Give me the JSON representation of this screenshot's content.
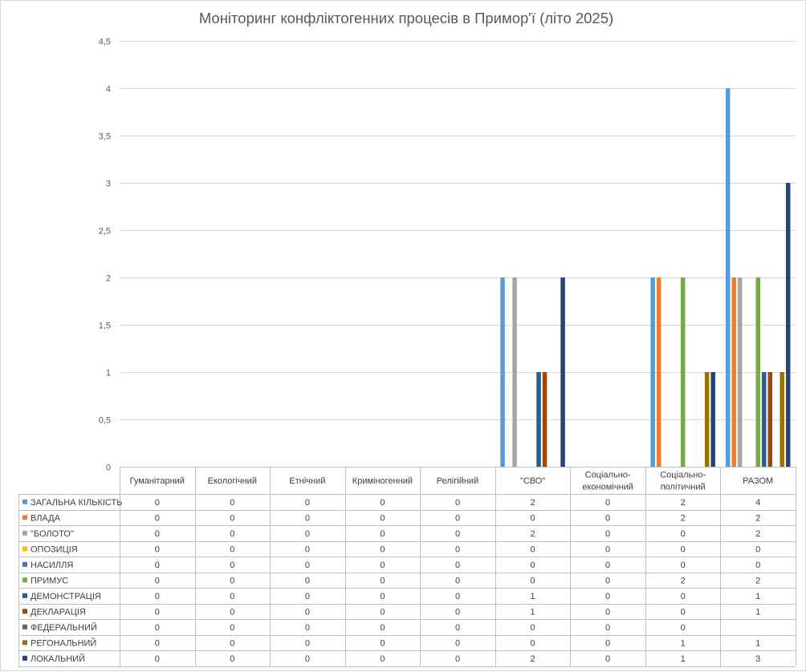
{
  "chart_data": {
    "type": "bar",
    "title": "Моніторинг конфліктогенних процесів в Примор'ї (літо 2025)",
    "xlabel": "",
    "ylabel": "",
    "ylim": [
      0,
      4.5
    ],
    "yticks": [
      "0",
      "0,5",
      "1",
      "1,5",
      "2",
      "2,5",
      "3",
      "3,5",
      "4",
      "4,5"
    ],
    "grid": true,
    "legend": "data-table-left",
    "categories": [
      [
        "Гуманітарний"
      ],
      [
        "Екологічний"
      ],
      [
        "Етнічний"
      ],
      [
        "Криміногенний"
      ],
      [
        "Релігійний"
      ],
      [
        "\"СВО\""
      ],
      [
        "Соціально-",
        "економічний"
      ],
      [
        "Соціально-",
        "політичний"
      ],
      [
        "РАЗОМ"
      ]
    ],
    "series": [
      {
        "name": "ЗАГАЛЬНА КІЛЬКІСТЬ",
        "color": "#5b9bd5",
        "values": [
          0,
          0,
          0,
          0,
          0,
          2,
          0,
          2,
          4
        ],
        "labels": [
          "0",
          "0",
          "0",
          "0",
          "0",
          "2",
          "0",
          "2",
          "4"
        ]
      },
      {
        "name": "ВЛАДА",
        "color": "#ed7d31",
        "values": [
          0,
          0,
          0,
          0,
          0,
          0,
          0,
          2,
          2
        ],
        "labels": [
          "0",
          "0",
          "0",
          "0",
          "0",
          "0",
          "0",
          "2",
          "2"
        ]
      },
      {
        "name": "\"БОЛОТО\"",
        "color": "#a5a5a5",
        "values": [
          0,
          0,
          0,
          0,
          0,
          2,
          0,
          0,
          2
        ],
        "labels": [
          "0",
          "0",
          "0",
          "0",
          "0",
          "2",
          "0",
          "0",
          "2"
        ]
      },
      {
        "name": "ОПОЗИЦІЯ",
        "color": "#ffc000",
        "values": [
          0,
          0,
          0,
          0,
          0,
          0,
          0,
          0,
          0
        ],
        "labels": [
          "0",
          "0",
          "0",
          "0",
          "0",
          "0",
          "0",
          "0",
          "0"
        ]
      },
      {
        "name": "НАСИЛЛЯ",
        "color": "#4472c4",
        "values": [
          0,
          0,
          0,
          0,
          0,
          0,
          0,
          0,
          0
        ],
        "labels": [
          "0",
          "0",
          "0",
          "0",
          "0",
          "0",
          "0",
          "0",
          "0"
        ]
      },
      {
        "name": "ПРИМУС",
        "color": "#70ad47",
        "values": [
          0,
          0,
          0,
          0,
          0,
          0,
          0,
          2,
          2
        ],
        "labels": [
          "0",
          "0",
          "0",
          "0",
          "0",
          "0",
          "0",
          "2",
          "2"
        ]
      },
      {
        "name": "ДЕМОНСТРАЦІЯ",
        "color": "#255e91",
        "values": [
          0,
          0,
          0,
          0,
          0,
          1,
          0,
          0,
          1
        ],
        "labels": [
          "0",
          "0",
          "0",
          "0",
          "0",
          "1",
          "0",
          "0",
          "1"
        ]
      },
      {
        "name": "ДЕКЛАРАЦІЯ",
        "color": "#9e480e",
        "values": [
          0,
          0,
          0,
          0,
          0,
          1,
          0,
          0,
          1
        ],
        "labels": [
          "0",
          "0",
          "0",
          "0",
          "0",
          "1",
          "0",
          "0",
          "1"
        ]
      },
      {
        "name": "ФЕДЕРАЛЬНИЙ",
        "color": "#636363",
        "values": [
          0,
          0,
          0,
          0,
          0,
          0,
          0,
          0,
          null
        ],
        "labels": [
          "0",
          "0",
          "0",
          "0",
          "0",
          "0",
          "0",
          "0",
          ""
        ]
      },
      {
        "name": "РЕГОНАЛЬНИЙ",
        "color": "#997300",
        "values": [
          0,
          0,
          0,
          0,
          0,
          0,
          0,
          1,
          1
        ],
        "labels": [
          "0",
          "0",
          "0",
          "0",
          "0",
          "0",
          "0",
          "1",
          "1"
        ]
      },
      {
        "name": "ЛОКАЛЬНИЙ",
        "color": "#264478",
        "values": [
          0,
          0,
          0,
          0,
          0,
          2,
          0,
          1,
          3
        ],
        "labels": [
          "0",
          "0",
          "0",
          "0",
          "0",
          "2",
          "0",
          "1",
          "3"
        ]
      }
    ]
  }
}
